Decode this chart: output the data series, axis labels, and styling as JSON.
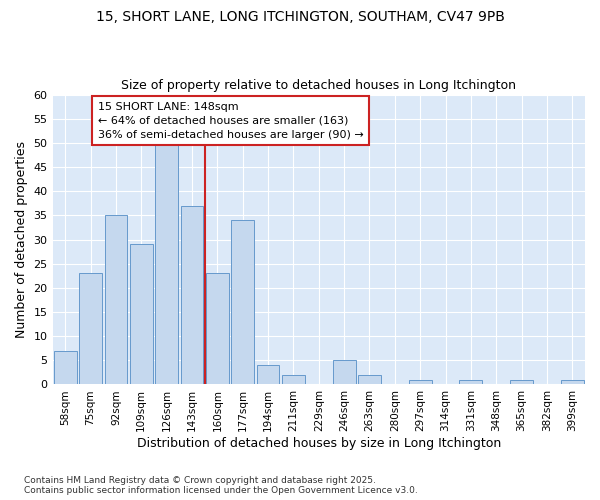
{
  "title_line1": "15, SHORT LANE, LONG ITCHINGTON, SOUTHAM, CV47 9PB",
  "title_line2": "Size of property relative to detached houses in Long Itchington",
  "xlabel": "Distribution of detached houses by size in Long Itchington",
  "ylabel": "Number of detached properties",
  "footnote": "Contains HM Land Registry data © Crown copyright and database right 2025.\nContains public sector information licensed under the Open Government Licence v3.0.",
  "categories": [
    "58sqm",
    "75sqm",
    "92sqm",
    "109sqm",
    "126sqm",
    "143sqm",
    "160sqm",
    "177sqm",
    "194sqm",
    "211sqm",
    "229sqm",
    "246sqm",
    "263sqm",
    "280sqm",
    "297sqm",
    "314sqm",
    "331sqm",
    "348sqm",
    "365sqm",
    "382sqm",
    "399sqm"
  ],
  "values": [
    7,
    23,
    35,
    29,
    50,
    37,
    23,
    34,
    4,
    2,
    0,
    5,
    2,
    0,
    1,
    0,
    1,
    0,
    1,
    0,
    1
  ],
  "bar_color": "#c5d8ee",
  "bar_edge_color": "#6699cc",
  "plot_bg_color": "#dce9f8",
  "fig_bg_color": "#ffffff",
  "grid_color": "#ffffff",
  "vline_color": "#cc2222",
  "annotation_text": "15 SHORT LANE: 148sqm\n← 64% of detached houses are smaller (163)\n36% of semi-detached houses are larger (90) →",
  "annotation_box_facecolor": "#ffffff",
  "annotation_box_edgecolor": "#cc2222",
  "ylim": [
    0,
    60
  ],
  "yticks": [
    0,
    5,
    10,
    15,
    20,
    25,
    30,
    35,
    40,
    45,
    50,
    55,
    60
  ],
  "vline_index": 5.5
}
